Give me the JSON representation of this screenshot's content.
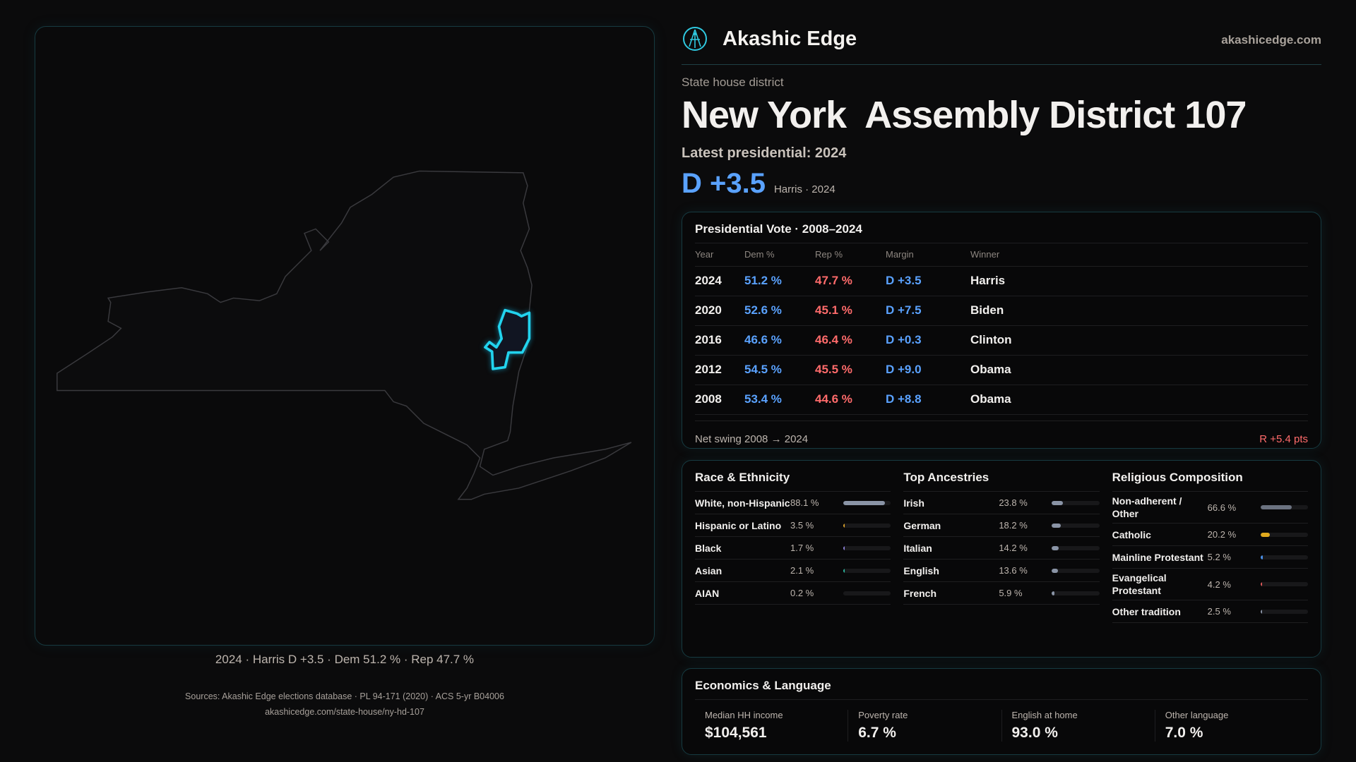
{
  "brand": {
    "name": "Akashic Edge",
    "site": "akashicedge.com",
    "logo_icon": "akashic-logo-icon",
    "accent": "#2fc9e0"
  },
  "header": {
    "kicker": "State house district",
    "title": "New York  Assembly District 107",
    "latest": "Latest presidential: 2024",
    "margin": "D +3.5",
    "margin_sub": "Harris · 2024"
  },
  "map": {
    "caption": "2024 · Harris D +3.5 · Dem 51.2 % · Rep 47.7  %",
    "state": "New York",
    "highlight_color": "#22d3ee"
  },
  "presidential": {
    "title": "Presidential Vote · 2008–2024",
    "columns": [
      "Year",
      "Dem %",
      "Rep %",
      "Margin",
      "Winner"
    ],
    "rows": [
      [
        "2024",
        "51.2 %",
        "47.7 %",
        "D +3.5",
        "Harris"
      ],
      [
        "2020",
        "52.6 %",
        "45.1 %",
        "D +7.5",
        "Biden"
      ],
      [
        "2016",
        "46.6 %",
        "46.4 %",
        "D +0.3",
        "Clinton"
      ],
      [
        "2012",
        "54.5 %",
        "45.5 %",
        "D +9.0",
        "Obama"
      ],
      [
        "2008",
        "53.4 %",
        "44.6 %",
        "D +8.8",
        "Obama"
      ]
    ],
    "swing_label": "Net swing 2008 → 2024",
    "swing_value": "R +5.4 pts"
  },
  "race": {
    "title": "Race & Ethnicity",
    "items": [
      {
        "label": "White, non-Hispanic",
        "pct": "88.1 %",
        "value": 88.1,
        "color": "#8a94a6"
      },
      {
        "label": "Hispanic or Latino",
        "pct": "3.5 %",
        "value": 3.5,
        "color": "#d9a02a"
      },
      {
        "label": "Black",
        "pct": "1.7 %",
        "value": 1.7,
        "color": "#8b7fd6"
      },
      {
        "label": "Asian",
        "pct": "2.1 %",
        "value": 2.1,
        "color": "#2bb39a"
      },
      {
        "label": "AIAN",
        "pct": "0.2 %",
        "value": 0.2,
        "color": "#8a94a6"
      }
    ]
  },
  "ancestry": {
    "title": "Top Ancestries",
    "items": [
      {
        "label": "Irish",
        "pct": "23.8 %",
        "value": 23.8,
        "color": "#8a94a6"
      },
      {
        "label": "German",
        "pct": "18.2 %",
        "value": 18.2,
        "color": "#8a94a6"
      },
      {
        "label": "Italian",
        "pct": "14.2 %",
        "value": 14.2,
        "color": "#8a94a6"
      },
      {
        "label": "English",
        "pct": "13.6 %",
        "value": 13.6,
        "color": "#8a94a6"
      },
      {
        "label": "French",
        "pct": "5.9 %",
        "value": 5.9,
        "color": "#8a94a6"
      }
    ]
  },
  "religion": {
    "title": "Religious Composition",
    "items": [
      {
        "label": "Non-adherent / Other",
        "pct": "66.6 %",
        "value": 66.6,
        "color": "#6b7280"
      },
      {
        "label": "Catholic",
        "pct": "20.2 %",
        "value": 20.2,
        "color": "#e0a91e"
      },
      {
        "label": "Mainline Protestant",
        "pct": "5.2 %",
        "value": 5.2,
        "color": "#4a8fe8"
      },
      {
        "label": "Evangelical Protestant",
        "pct": "4.2 %",
        "value": 4.2,
        "color": "#e05a5a"
      },
      {
        "label": "Other tradition",
        "pct": "2.5 %",
        "value": 2.5,
        "color": "#8a94a6"
      }
    ]
  },
  "economics": {
    "title": "Economics & Language",
    "items": [
      {
        "label": "Median HH income",
        "value": "$104,561"
      },
      {
        "label": "Poverty rate",
        "value": "6.7 %"
      },
      {
        "label": "English at home",
        "value": "93.0 %"
      },
      {
        "label": "Other language",
        "value": "7.0 %"
      }
    ]
  },
  "footer": {
    "sources": "Sources: Akashic Edge elections database · PL 94-171 (2020) · ACS 5-yr B04006",
    "url": "akashicedge.com/state-house/ny-hd-107"
  }
}
